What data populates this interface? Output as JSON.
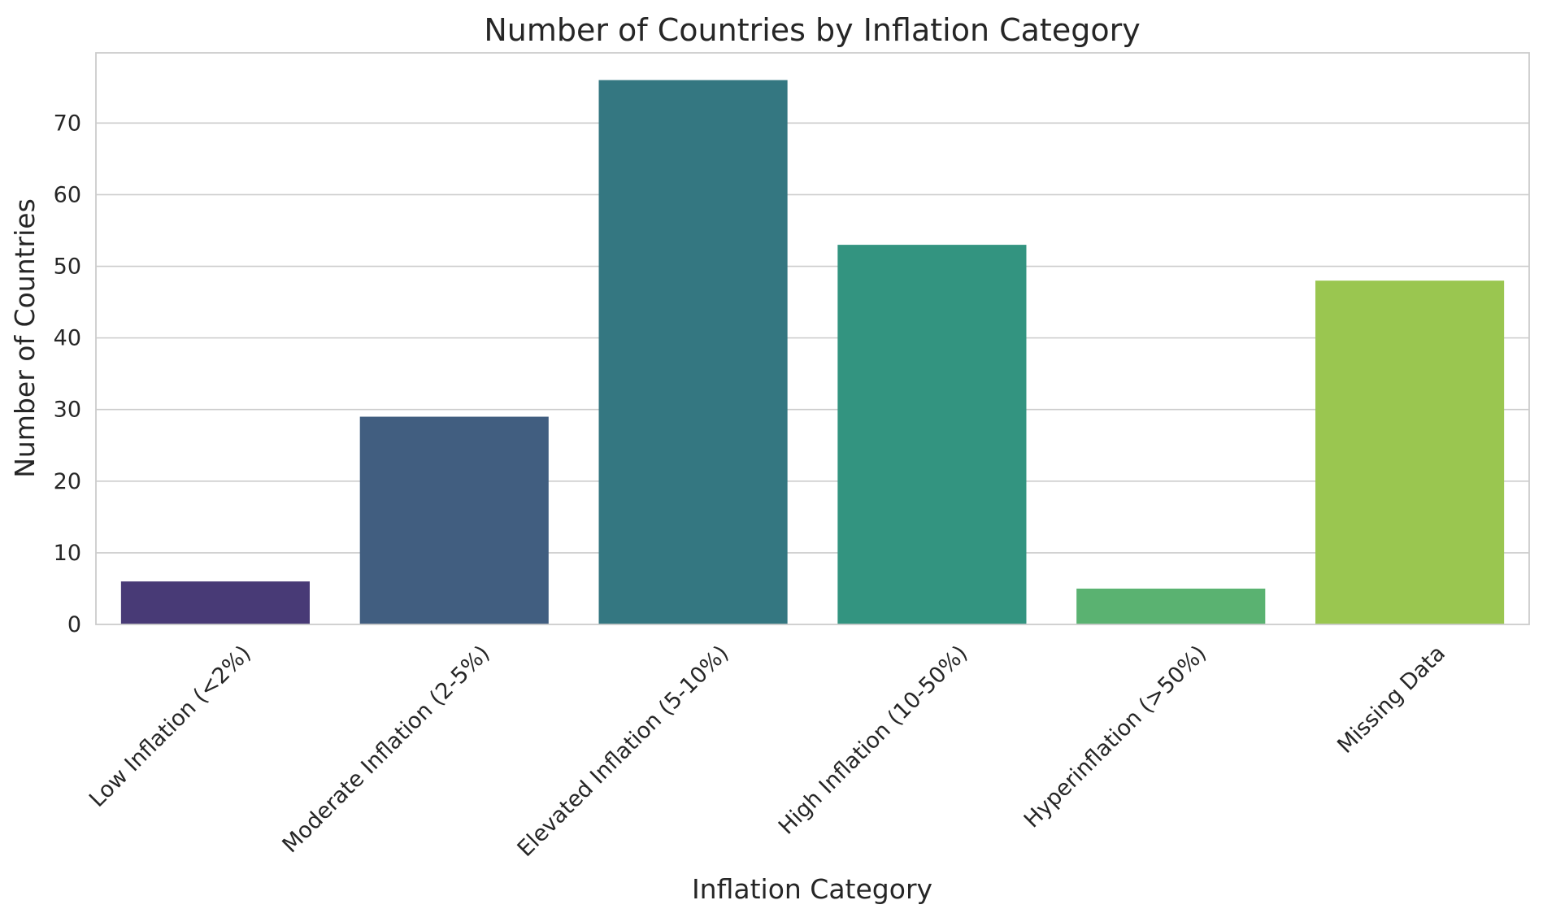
{
  "chart_data": {
    "type": "bar",
    "title": "Number of Countries by Inflation Category",
    "xlabel": "Inflation Category",
    "ylabel": "Number of Countries",
    "categories": [
      "Low Inflation (<2%)",
      "Moderate Inflation (2-5%)",
      "Elevated Inflation (5-10%)",
      "High Inflation (10-50%)",
      "Hyperinflation (>50%)",
      "Missing Data"
    ],
    "values": [
      6,
      29,
      76,
      53,
      5,
      48
    ],
    "colors": [
      "#483a76",
      "#415e80",
      "#347781",
      "#339480",
      "#5ab271",
      "#9ac650"
    ],
    "ylim": [
      0,
      79.8
    ],
    "yticks": [
      0,
      10,
      20,
      30,
      40,
      50,
      60,
      70
    ],
    "grid": "horizontal",
    "legend": "none"
  }
}
